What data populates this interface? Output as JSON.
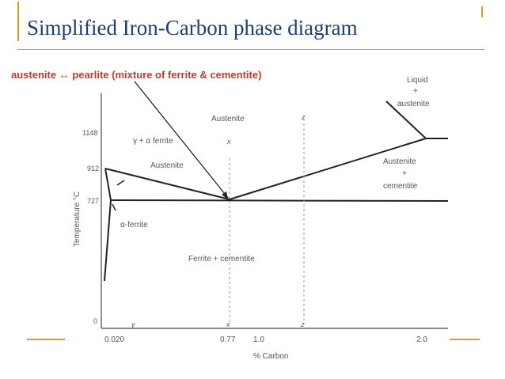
{
  "title": "Simplified Iron-Carbon phase diagram",
  "callout": "austenite ↔ pearlite (mixture of  ferrite & cementite)",
  "axes": {
    "ylabel": "Temperature °C",
    "xlabel": "% Carbon",
    "y_ticks": [
      "1148",
      "912",
      "727",
      "0"
    ],
    "x_ticks": [
      "0.020",
      "0.77",
      "1.0",
      "2.0"
    ],
    "x_markers": [
      "y",
      "x",
      "z"
    ],
    "top_markers": [
      "x",
      "z"
    ]
  },
  "regions": {
    "liquid": "Liquid",
    "liquid_austenite_plus": "+",
    "liquid_austenite": "austenite",
    "austenite": "Austenite",
    "gamma_alpha_ferrite": "γ + α ferrite",
    "gamma_alpha_austenite": "Austenite",
    "austenite_cementite_top": "Austenite",
    "austenite_cementite_plus": "+",
    "austenite_cementite_bottom": "cementite",
    "alpha_ferrite": "α-ferrite",
    "ferrite_cementite": "Ferrite + cementite"
  },
  "colors": {
    "title": "#1f3f6e",
    "callout": "#c0392b",
    "accent": "#c9a227",
    "lines": "#222222"
  }
}
